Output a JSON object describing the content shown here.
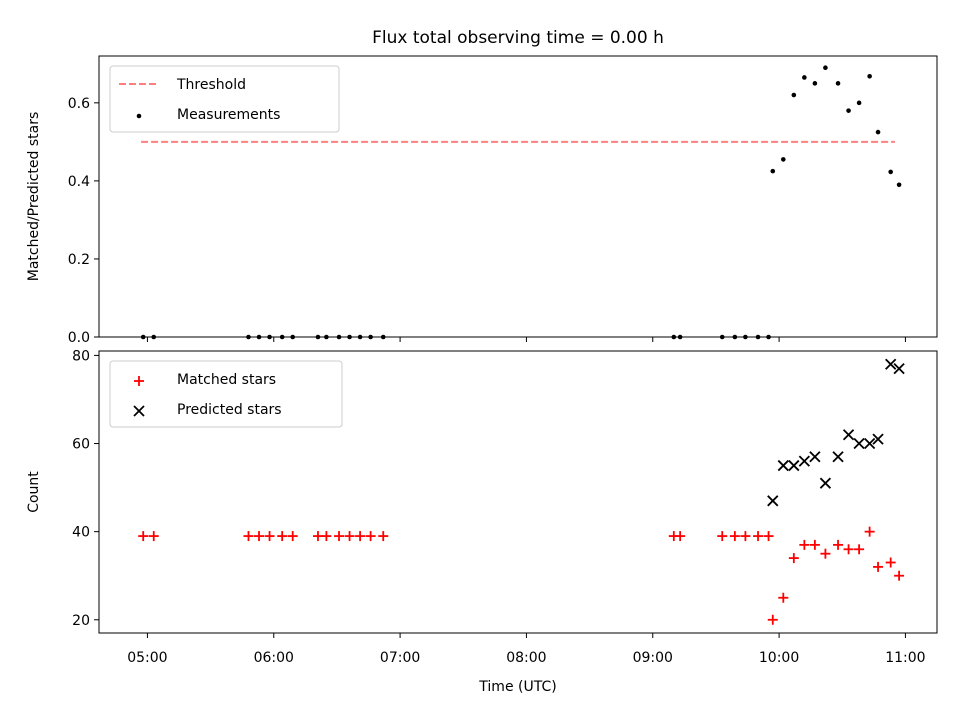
{
  "chart_data": {
    "title": "Flux total observing time = 0.00 h",
    "xlabel": "Time (UTC)",
    "x_unit": "hours UTC",
    "xlim": [
      "04:37",
      "11:15"
    ],
    "xticks": [
      {
        "t": "05:00",
        "label": "05:00"
      },
      {
        "t": "06:00",
        "label": "06:00"
      },
      {
        "t": "07:00",
        "label": "07:00"
      },
      {
        "t": "08:00",
        "label": "08:00"
      },
      {
        "t": "09:00",
        "label": "09:00"
      },
      {
        "t": "10:00",
        "label": "10:00"
      },
      {
        "t": "11:00",
        "label": "11:00"
      }
    ],
    "panels": [
      {
        "type": "scatter",
        "ylabel": "Matched/Predicted stars",
        "ylim": [
          0,
          0.72
        ],
        "yticks": [
          0.0,
          0.2,
          0.4,
          0.6
        ],
        "ytick_labels": [
          "0.0",
          "0.2",
          "0.4",
          "0.6"
        ],
        "legend_position": "upper-left",
        "series": [
          {
            "name": "Threshold",
            "type": "line",
            "style": "dashed",
            "color": "#ff7f7f",
            "x": [
              "04:57",
              "10:55"
            ],
            "y": [
              0.5,
              0.5
            ]
          },
          {
            "name": "Measurements",
            "type": "scatter",
            "marker": "dot",
            "color": "#000000",
            "points": [
              [
                "04:58",
                0.0
              ],
              [
                "05:03",
                0.0
              ],
              [
                "05:48",
                0.0
              ],
              [
                "05:53",
                0.0
              ],
              [
                "05:58",
                0.0
              ],
              [
                "06:04",
                0.0
              ],
              [
                "06:09",
                0.0
              ],
              [
                "06:21",
                0.0
              ],
              [
                "06:25",
                0.0
              ],
              [
                "06:31",
                0.0
              ],
              [
                "06:36",
                0.0
              ],
              [
                "06:41",
                0.0
              ],
              [
                "06:46",
                0.0
              ],
              [
                "06:52",
                0.0
              ],
              [
                "09:10",
                0.0
              ],
              [
                "09:13",
                0.0
              ],
              [
                "09:33",
                0.0
              ],
              [
                "09:39",
                0.0
              ],
              [
                "09:44",
                0.0
              ],
              [
                "09:50",
                0.0
              ],
              [
                "09:55",
                0.0
              ],
              [
                "09:57",
                0.425
              ],
              [
                "10:02",
                0.455
              ],
              [
                "10:07",
                0.62
              ],
              [
                "10:12",
                0.665
              ],
              [
                "10:17",
                0.65
              ],
              [
                "10:22",
                0.69
              ],
              [
                "10:28",
                0.65
              ],
              [
                "10:33",
                0.58
              ],
              [
                "10:38",
                0.6
              ],
              [
                "10:43",
                0.668
              ],
              [
                "10:47",
                0.525
              ],
              [
                "10:53",
                0.423
              ],
              [
                "10:57",
                0.39
              ]
            ]
          }
        ]
      },
      {
        "type": "scatter",
        "ylabel": "Count",
        "ylim": [
          17,
          81
        ],
        "yticks": [
          20,
          40,
          60,
          80
        ],
        "ytick_labels": [
          "20",
          "40",
          "60",
          "80"
        ],
        "legend_position": "upper-left",
        "series": [
          {
            "name": "Matched stars",
            "type": "scatter",
            "marker": "plus",
            "color": "#ff0000",
            "points": [
              [
                "04:58",
                39
              ],
              [
                "05:03",
                39
              ],
              [
                "05:48",
                39
              ],
              [
                "05:53",
                39
              ],
              [
                "05:58",
                39
              ],
              [
                "06:04",
                39
              ],
              [
                "06:09",
                39
              ],
              [
                "06:21",
                39
              ],
              [
                "06:25",
                39
              ],
              [
                "06:31",
                39
              ],
              [
                "06:36",
                39
              ],
              [
                "06:41",
                39
              ],
              [
                "06:46",
                39
              ],
              [
                "06:52",
                39
              ],
              [
                "09:10",
                39
              ],
              [
                "09:13",
                39
              ],
              [
                "09:33",
                39
              ],
              [
                "09:39",
                39
              ],
              [
                "09:44",
                39
              ],
              [
                "09:50",
                39
              ],
              [
                "09:55",
                39
              ],
              [
                "09:57",
                20
              ],
              [
                "10:02",
                25
              ],
              [
                "10:07",
                34
              ],
              [
                "10:12",
                37
              ],
              [
                "10:17",
                37
              ],
              [
                "10:22",
                35
              ],
              [
                "10:28",
                37
              ],
              [
                "10:33",
                36
              ],
              [
                "10:38",
                36
              ],
              [
                "10:43",
                40
              ],
              [
                "10:47",
                32
              ],
              [
                "10:53",
                33
              ],
              [
                "10:57",
                30
              ]
            ]
          },
          {
            "name": "Predicted stars",
            "type": "scatter",
            "marker": "x",
            "color": "#000000",
            "points": [
              [
                "09:57",
                47
              ],
              [
                "10:02",
                55
              ],
              [
                "10:07",
                55
              ],
              [
                "10:12",
                56
              ],
              [
                "10:17",
                57
              ],
              [
                "10:22",
                51
              ],
              [
                "10:28",
                57
              ],
              [
                "10:33",
                62
              ],
              [
                "10:38",
                60
              ],
              [
                "10:43",
                60
              ],
              [
                "10:47",
                61
              ],
              [
                "10:53",
                78
              ],
              [
                "10:57",
                77
              ]
            ]
          }
        ]
      }
    ]
  }
}
